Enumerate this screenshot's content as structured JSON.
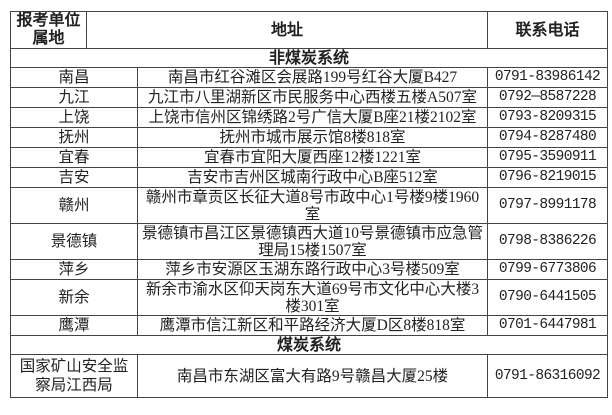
{
  "header": {
    "unit": "报考单位属地",
    "address": "地址",
    "phone": "联系电话"
  },
  "sections": {
    "non_coal": "非煤炭系统",
    "coal": "煤炭系统"
  },
  "rows": [
    {
      "unit": "南昌",
      "address": "南昌市红谷滩区会展路199号红谷大厦B427",
      "phone": "0791-83986142"
    },
    {
      "unit": "九江",
      "address": "九江市八里湖新区市民服务中心西楼五楼A507室",
      "phone": "0792—8587228"
    },
    {
      "unit": "上饶",
      "address": "上饶市信州区锦绣路2号广信大厦B座21楼2102室",
      "phone": "0793-8209315"
    },
    {
      "unit": "抚州",
      "address": "抚州市城市展示馆8楼818室",
      "phone": "0794-8287480"
    },
    {
      "unit": "宜春",
      "address": "宜春市宜阳大厦西座12楼1221室",
      "phone": "0795-3590911"
    },
    {
      "unit": "吉安",
      "address": "吉安市吉州区城南行政中心B座512室",
      "phone": "0796-8219015"
    },
    {
      "unit": "赣州",
      "address": "赣州市章贡区长征大道8号市政中心1号楼9楼1960室",
      "phone": "0797-8991178"
    },
    {
      "unit": "景德镇",
      "address": "景德镇市昌江区景德镇西大道10号景德镇市应急管理局15楼1507室",
      "phone": "0798-8386226"
    },
    {
      "unit": "萍乡",
      "address": "萍乡市安源区玉湖东路行政中心3号楼509室",
      "phone": "0799-6773806"
    },
    {
      "unit": "新余",
      "address": "新余市渝水区仰天岗东大道69号市文化中心大楼3楼301室",
      "phone": "0790-6441505"
    },
    {
      "unit": "鹰潭",
      "address": "鹰潭市信江新区和平路经济大厦D区8楼818室",
      "phone": "0701-6447981"
    }
  ],
  "coal_row": {
    "unit": "国家矿山安全监察局江西局",
    "address": "南昌市东湖区富大有路9号赣昌大厦25楼",
    "phone": "0791-86316092"
  }
}
